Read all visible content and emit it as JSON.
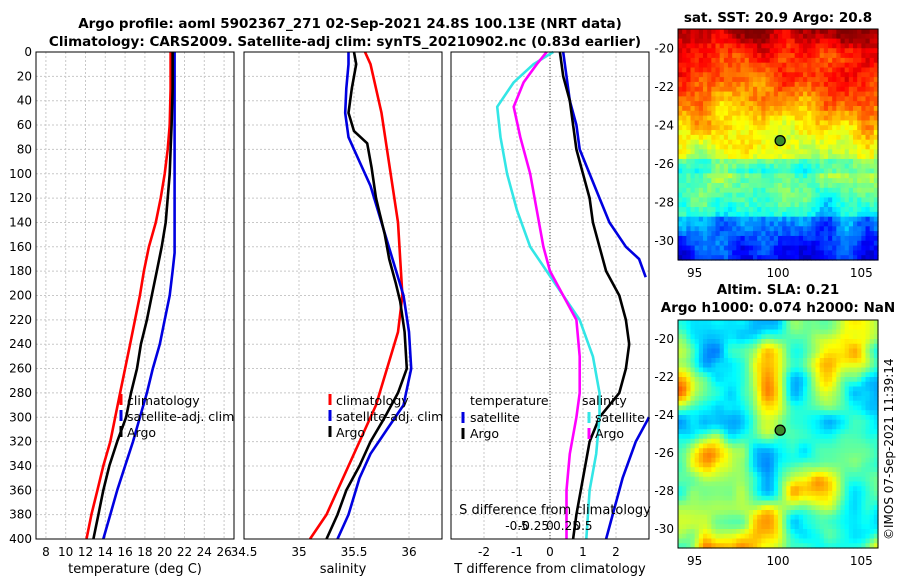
{
  "titles": {
    "line1": "Argo profile: aoml 5902367_271 02-Sep-2021 24.8S 100.13E (NRT data)",
    "line2": "Climatology: CARS2009. Satellite-adj clim: synTS_20210902.nc (0.83d earlier)"
  },
  "watermark": "©IMOS 07-Sep-2021 11:39:14",
  "colors": {
    "red": "#ff0000",
    "blue": "#0000e0",
    "black": "#000000",
    "cyan": "#33e6e6",
    "magenta": "#ff00ff"
  },
  "chart_data": [
    {
      "type": "line",
      "name": "temperature-profile",
      "xlabel": "temperature (deg C)",
      "ylabel": "depth",
      "xlim": [
        7,
        27
      ],
      "ylim": [
        400,
        0
      ],
      "xticks": [
        8,
        10,
        12,
        14,
        16,
        18,
        20,
        22,
        24,
        26
      ],
      "yticks": [
        0,
        20,
        40,
        60,
        80,
        100,
        120,
        140,
        160,
        180,
        200,
        220,
        240,
        260,
        280,
        300,
        320,
        340,
        360,
        380,
        400
      ],
      "legend": [
        "climatology",
        "satellite-adj. clim",
        "Argo"
      ],
      "legend_placement": "bottom-center",
      "series": [
        {
          "name": "climatology",
          "color": "red",
          "points": [
            [
              20.6,
              0
            ],
            [
              20.6,
              30
            ],
            [
              20.5,
              60
            ],
            [
              20.3,
              80
            ],
            [
              20.0,
              100
            ],
            [
              19.6,
              120
            ],
            [
              19.1,
              140
            ],
            [
              18.4,
              160
            ],
            [
              17.9,
              180
            ],
            [
              17.5,
              200
            ],
            [
              17.0,
              220
            ],
            [
              16.5,
              240
            ],
            [
              16.0,
              260
            ],
            [
              15.5,
              280
            ],
            [
              15.0,
              300
            ],
            [
              14.5,
              320
            ],
            [
              13.8,
              340
            ],
            [
              13.2,
              360
            ],
            [
              12.6,
              380
            ],
            [
              12.1,
              400
            ]
          ]
        },
        {
          "name": "satellite-adj. clim",
          "color": "blue",
          "points": [
            [
              21.0,
              0
            ],
            [
              21.0,
              40
            ],
            [
              21.0,
              80
            ],
            [
              21.0,
              120
            ],
            [
              21.0,
              150
            ],
            [
              21.0,
              165
            ],
            [
              20.8,
              180
            ],
            [
              20.5,
              200
            ],
            [
              20.0,
              220
            ],
            [
              19.5,
              240
            ],
            [
              18.8,
              260
            ],
            [
              18.2,
              280
            ],
            [
              17.5,
              300
            ],
            [
              16.8,
              320
            ],
            [
              16.0,
              340
            ],
            [
              15.2,
              360
            ],
            [
              14.5,
              380
            ],
            [
              13.8,
              400
            ]
          ]
        },
        {
          "name": "Argo",
          "color": "black",
          "points": [
            [
              20.8,
              0
            ],
            [
              20.8,
              30
            ],
            [
              20.7,
              60
            ],
            [
              20.6,
              80
            ],
            [
              20.5,
              100
            ],
            [
              20.3,
              120
            ],
            [
              20.1,
              140
            ],
            [
              19.7,
              160
            ],
            [
              19.2,
              180
            ],
            [
              18.7,
              200
            ],
            [
              18.2,
              220
            ],
            [
              17.6,
              240
            ],
            [
              17.2,
              260
            ],
            [
              16.6,
              280
            ],
            [
              16.1,
              300
            ],
            [
              15.2,
              320
            ],
            [
              14.4,
              340
            ],
            [
              13.8,
              360
            ],
            [
              13.3,
              380
            ],
            [
              12.8,
              400
            ]
          ]
        }
      ]
    },
    {
      "type": "line",
      "name": "salinity-profile",
      "xlabel": "salinity",
      "xlim": [
        34.5,
        36.3
      ],
      "ylim": [
        400,
        0
      ],
      "xticks": [
        34.5,
        35,
        35.5,
        36
      ],
      "xticklabels": [
        "34.5",
        "35",
        "35.5",
        "36"
      ],
      "legend": [
        "climatology",
        "satellite-adj. clim",
        "Argo"
      ],
      "legend_placement": "bottom-center",
      "series": [
        {
          "name": "climatology",
          "color": "red",
          "points": [
            [
              35.6,
              0
            ],
            [
              35.65,
              10
            ],
            [
              35.7,
              30
            ],
            [
              35.75,
              50
            ],
            [
              35.8,
              80
            ],
            [
              35.85,
              110
            ],
            [
              35.9,
              140
            ],
            [
              35.92,
              170
            ],
            [
              35.94,
              200
            ],
            [
              35.9,
              230
            ],
            [
              35.8,
              260
            ],
            [
              35.7,
              290
            ],
            [
              35.55,
              320
            ],
            [
              35.4,
              350
            ],
            [
              35.25,
              380
            ],
            [
              35.1,
              400
            ]
          ]
        },
        {
          "name": "satellite-adj. clim",
          "color": "blue",
          "points": [
            [
              35.45,
              0
            ],
            [
              35.45,
              10
            ],
            [
              35.43,
              30
            ],
            [
              35.42,
              50
            ],
            [
              35.45,
              70
            ],
            [
              35.55,
              90
            ],
            [
              35.65,
              110
            ],
            [
              35.75,
              140
            ],
            [
              35.85,
              170
            ],
            [
              35.95,
              200
            ],
            [
              36.0,
              230
            ],
            [
              36.02,
              260
            ],
            [
              35.95,
              290
            ],
            [
              35.8,
              310
            ],
            [
              35.65,
              330
            ],
            [
              35.55,
              350
            ],
            [
              35.45,
              380
            ],
            [
              35.35,
              400
            ]
          ]
        },
        {
          "name": "Argo",
          "color": "black",
          "points": [
            [
              35.5,
              0
            ],
            [
              35.52,
              10
            ],
            [
              35.48,
              30
            ],
            [
              35.45,
              50
            ],
            [
              35.5,
              65
            ],
            [
              35.62,
              75
            ],
            [
              35.66,
              95
            ],
            [
              35.7,
              120
            ],
            [
              35.78,
              150
            ],
            [
              35.82,
              170
            ],
            [
              35.88,
              190
            ],
            [
              35.92,
              205
            ],
            [
              35.96,
              230
            ],
            [
              35.98,
              260
            ],
            [
              35.9,
              280
            ],
            [
              35.78,
              300
            ],
            [
              35.65,
              320
            ],
            [
              35.55,
              340
            ],
            [
              35.43,
              360
            ],
            [
              35.35,
              380
            ],
            [
              35.25,
              400
            ]
          ]
        }
      ]
    },
    {
      "type": "line",
      "name": "difference-profile",
      "xlabel": "T difference from climatology",
      "xlabel_top": "S difference from climatology",
      "xlim": [
        -3,
        3
      ],
      "ylim": [
        400,
        0
      ],
      "xticks": [
        -2,
        -1,
        0,
        1,
        2
      ],
      "xticklabels": [
        "-2",
        "-1",
        "0",
        "1",
        "2"
      ],
      "s_xticks": [
        -1,
        -0.5,
        0,
        0.5,
        1
      ],
      "s_xticklabels": [
        "-0.5",
        "-0.25",
        "0",
        "0.25",
        "0.5"
      ],
      "legend_t_title": "temperature",
      "legend_s_title": "salinity",
      "legend": [
        "satellite",
        "Argo"
      ],
      "legend_placement": "bottom",
      "series": [
        {
          "name": "T satellite",
          "color": "blue",
          "points": [
            [
              0.4,
              0
            ],
            [
              0.5,
              20
            ],
            [
              0.6,
              40
            ],
            [
              0.8,
              60
            ],
            [
              0.9,
              80
            ],
            [
              1.2,
              100
            ],
            [
              1.5,
              120
            ],
            [
              1.8,
              140
            ],
            [
              2.3,
              160
            ],
            [
              2.7,
              170
            ],
            [
              2.9,
              185
            ]
          ]
        },
        {
          "name": "T satellite lower",
          "color": "blue",
          "points": [
            [
              3.0,
              300
            ],
            [
              2.6,
              320
            ],
            [
              2.2,
              350
            ],
            [
              1.9,
              380
            ],
            [
              1.7,
              400
            ]
          ]
        },
        {
          "name": "T Argo",
          "color": "black",
          "points": [
            [
              0.3,
              0
            ],
            [
              0.4,
              20
            ],
            [
              0.6,
              40
            ],
            [
              0.7,
              60
            ],
            [
              0.8,
              80
            ],
            [
              1.0,
              100
            ],
            [
              1.2,
              120
            ],
            [
              1.3,
              140
            ],
            [
              1.5,
              160
            ],
            [
              1.7,
              180
            ],
            [
              2.1,
              200
            ],
            [
              2.3,
              220
            ],
            [
              2.4,
              240
            ],
            [
              2.3,
              260
            ],
            [
              2.1,
              280
            ],
            [
              1.5,
              300
            ],
            [
              1.2,
              320
            ],
            [
              1.0,
              350
            ],
            [
              0.8,
              380
            ],
            [
              0.7,
              400
            ]
          ]
        },
        {
          "name": "S satellite",
          "color": "cyan",
          "points": [
            [
              0.1,
              0
            ],
            [
              -0.5,
              10
            ],
            [
              -1.1,
              25
            ],
            [
              -1.6,
              45
            ],
            [
              -1.5,
              70
            ],
            [
              -1.3,
              100
            ],
            [
              -1.0,
              130
            ],
            [
              -0.6,
              160
            ],
            [
              -0.1,
              180
            ],
            [
              0.4,
              200
            ],
            [
              0.9,
              220
            ],
            [
              1.3,
              250
            ],
            [
              1.5,
              280
            ],
            [
              1.5,
              300
            ],
            [
              1.4,
              330
            ],
            [
              1.2,
              360
            ],
            [
              1.1,
              400
            ]
          ]
        },
        {
          "name": "S Argo",
          "color": "magenta",
          "points": [
            [
              -0.1,
              0
            ],
            [
              -0.4,
              10
            ],
            [
              -0.8,
              25
            ],
            [
              -1.1,
              45
            ],
            [
              -0.9,
              70
            ],
            [
              -0.6,
              100
            ],
            [
              -0.4,
              130
            ],
            [
              -0.2,
              160
            ],
            [
              0.0,
              180
            ],
            [
              0.4,
              200
            ],
            [
              0.8,
              220
            ],
            [
              0.9,
              250
            ],
            [
              0.9,
              280
            ],
            [
              0.8,
              300
            ],
            [
              0.6,
              330
            ],
            [
              0.5,
              360
            ],
            [
              0.5,
              400
            ]
          ]
        }
      ]
    },
    {
      "type": "heatmap",
      "name": "sst-map",
      "title": "sat. SST: 20.9 Argo: 20.8",
      "xlim": [
        94,
        106
      ],
      "ylim": [
        -31,
        -19
      ],
      "xticks": [
        95,
        100,
        105
      ],
      "yticks": [
        -20,
        -22,
        -24,
        -26,
        -28,
        -30
      ],
      "marker": {
        "lon": 100.13,
        "lat": -24.8
      }
    },
    {
      "type": "heatmap",
      "name": "sla-map",
      "title_line1": "Altim. SLA: 0.21",
      "title_line2": "Argo h1000: 0.074 h2000: NaN",
      "xlim": [
        94,
        106
      ],
      "ylim": [
        -31,
        -19
      ],
      "xticks": [
        95,
        100,
        105
      ],
      "yticks": [
        -20,
        -22,
        -24,
        -26,
        -28,
        -30
      ],
      "marker": {
        "lon": 100.13,
        "lat": -24.8
      }
    }
  ]
}
